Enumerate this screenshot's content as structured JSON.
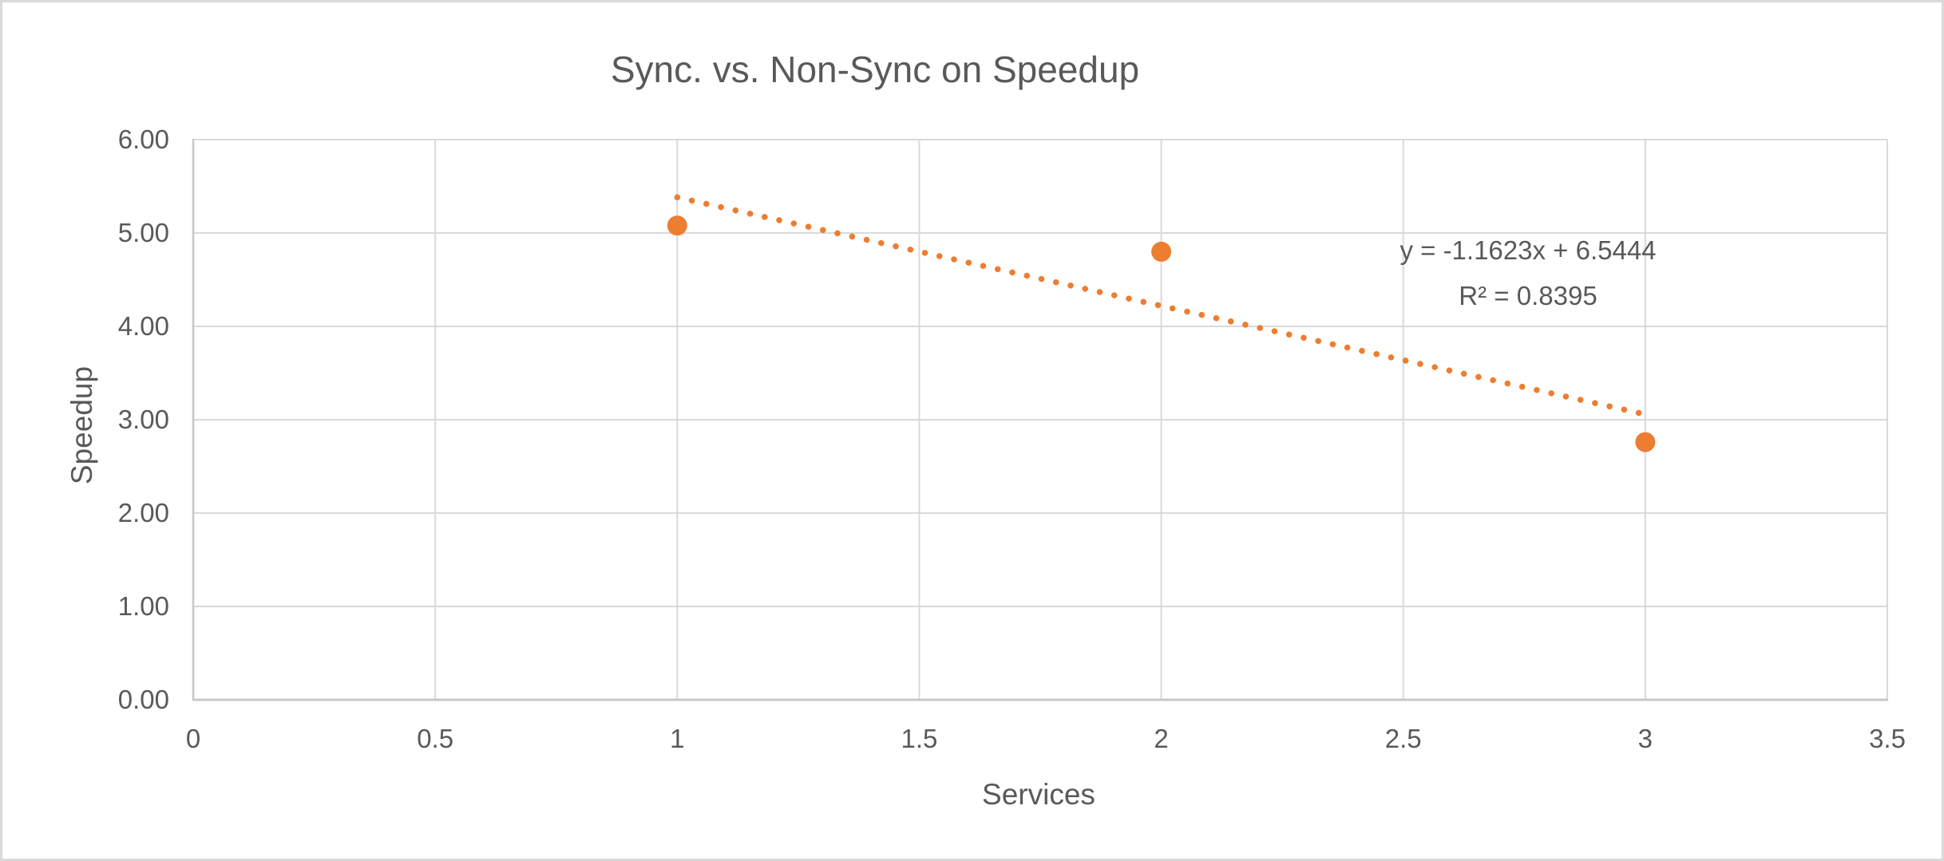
{
  "chart_data": {
    "type": "scatter",
    "title": "Sync. vs. Non-Sync on Speedup",
    "xlabel": "Services",
    "ylabel": "Speedup",
    "xlim": [
      0,
      3.5
    ],
    "ylim": [
      0,
      6
    ],
    "grid": true,
    "legend": "none",
    "x_ticks": [
      {
        "v": 0,
        "label": "0"
      },
      {
        "v": 0.5,
        "label": "0.5"
      },
      {
        "v": 1,
        "label": "1"
      },
      {
        "v": 1.5,
        "label": "1.5"
      },
      {
        "v": 2,
        "label": "2"
      },
      {
        "v": 2.5,
        "label": "2.5"
      },
      {
        "v": 3,
        "label": "3"
      },
      {
        "v": 3.5,
        "label": "3.5"
      }
    ],
    "y_ticks": [
      {
        "v": 0,
        "label": "0.00"
      },
      {
        "v": 1,
        "label": "1.00"
      },
      {
        "v": 2,
        "label": "2.00"
      },
      {
        "v": 3,
        "label": "3.00"
      },
      {
        "v": 4,
        "label": "4.00"
      },
      {
        "v": 5,
        "label": "5.00"
      },
      {
        "v": 6,
        "label": "6.00"
      }
    ],
    "series": [
      {
        "name": "Speedup",
        "marker": "circle",
        "color": "#ED7D31",
        "points": [
          {
            "x": 1,
            "y": 5.08
          },
          {
            "x": 2,
            "y": 4.8
          },
          {
            "x": 3,
            "y": 2.76
          }
        ]
      }
    ],
    "trendline": {
      "kind": "linear",
      "slope": -1.1623,
      "intercept": 6.5444,
      "x_start": 1,
      "x_end": 3,
      "style": "dotted",
      "color": "#ED7D31",
      "equation_label": "y = -1.1623x + 6.5444",
      "r2_label": "R² = 0.8395"
    },
    "colors": {
      "text": "#595959",
      "gridline": "#D9D9D9",
      "axis_line": "#C8C8C8",
      "marker": "#ED7D31",
      "background": "#FFFFFF",
      "chart_border": "#D9D9D9"
    }
  }
}
